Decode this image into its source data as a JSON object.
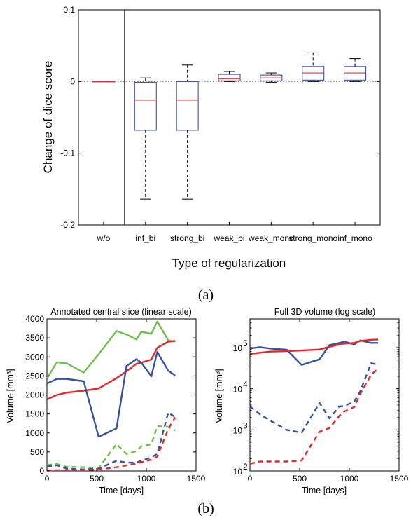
{
  "chart_data": [
    {
      "type": "box",
      "ylabel": "Change of dice score",
      "xlabel": "Type of regularization",
      "ylim": [
        -0.2,
        0.1
      ],
      "yticks": [
        -0.2,
        -0.1,
        0,
        0.1
      ],
      "ytick_labels": [
        "-0.2",
        "-0.1",
        "0",
        "0.1"
      ],
      "reference_line": 0,
      "separator_after_category": 0,
      "categories": [
        "w/o",
        "inf_bi",
        "strong_bi",
        "weak_bi",
        "weak_mono",
        "strong_mono",
        "inf_mono"
      ],
      "boxes": [
        {
          "min": 0,
          "q1": 0,
          "median": 0,
          "q3": 0,
          "max": 0
        },
        {
          "min": -0.164,
          "q1": -0.068,
          "median": -0.026,
          "q3": -0.001,
          "max": 0.005
        },
        {
          "min": -0.164,
          "q1": -0.068,
          "median": -0.026,
          "q3": 0.0,
          "max": 0.023
        },
        {
          "min": 0.0,
          "q1": 0.001,
          "median": 0.004,
          "q3": 0.01,
          "max": 0.014
        },
        {
          "min": -0.001,
          "q1": 0.001,
          "median": 0.005,
          "q3": 0.009,
          "max": 0.012
        },
        {
          "min": 0.0,
          "q1": 0.002,
          "median": 0.012,
          "q3": 0.021,
          "max": 0.04
        },
        {
          "min": 0.0,
          "q1": 0.002,
          "median": 0.012,
          "q3": 0.021,
          "max": 0.032
        }
      ],
      "colors": {
        "box": "#2b3fa6",
        "median": "#e8303a",
        "reference": "#777777"
      },
      "sublabel": "(a)"
    },
    {
      "type": "line",
      "title": "Annotated central slice (linear scale)",
      "xlabel": "Time [days]",
      "ylabel": "Volume [mm³]",
      "xlim": [
        0,
        1500
      ],
      "ylim": [
        0,
        4000
      ],
      "xticks": [
        0,
        500,
        1000,
        1500
      ],
      "yticks": [
        0,
        500,
        1000,
        1500,
        2000,
        2500,
        3000,
        3500,
        4000
      ],
      "series": [
        {
          "color": "#6cc04a",
          "style": "solid",
          "x": [
            0,
            100,
            200,
            370,
            520,
            700,
            800,
            900,
            950,
            1050,
            1110,
            1220,
            1290
          ],
          "y": [
            2430,
            2860,
            2830,
            2590,
            3070,
            3680,
            3590,
            3460,
            3660,
            3610,
            3930,
            3440,
            3400
          ]
        },
        {
          "color": "#e8262a",
          "style": "solid",
          "x": [
            0,
            100,
            200,
            370,
            520,
            700,
            800,
            900,
            950,
            1050,
            1110,
            1220,
            1290
          ],
          "y": [
            1880,
            2000,
            2060,
            2110,
            2170,
            2440,
            2620,
            2820,
            2850,
            2930,
            3240,
            3400,
            3420
          ]
        },
        {
          "color": "#3452a4",
          "style": "solid",
          "x": [
            0,
            100,
            200,
            370,
            520,
            700,
            800,
            900,
            950,
            1050,
            1110,
            1220,
            1290
          ],
          "y": [
            2300,
            2420,
            2420,
            2360,
            900,
            1120,
            2760,
            2940,
            2850,
            2490,
            3130,
            2640,
            2510
          ]
        },
        {
          "color": "#6cc04a",
          "style": "dashed",
          "x": [
            0,
            100,
            200,
            370,
            520,
            700,
            800,
            900,
            950,
            1050,
            1110,
            1220,
            1290
          ],
          "y": [
            160,
            180,
            110,
            100,
            80,
            710,
            450,
            520,
            650,
            700,
            1180,
            1160,
            1060
          ]
        },
        {
          "color": "#3452a4",
          "style": "dashed",
          "x": [
            0,
            100,
            200,
            370,
            520,
            700,
            800,
            900,
            950,
            1050,
            1110,
            1220,
            1290
          ],
          "y": [
            120,
            150,
            60,
            40,
            60,
            270,
            220,
            220,
            270,
            360,
            450,
            1530,
            1420
          ]
        },
        {
          "color": "#e8262a",
          "style": "dashed",
          "x": [
            0,
            100,
            200,
            370,
            520,
            700,
            800,
            900,
            950,
            1050,
            1110,
            1220,
            1290
          ],
          "y": [
            10,
            20,
            20,
            20,
            40,
            100,
            150,
            190,
            230,
            300,
            380,
            1100,
            1410
          ]
        }
      ]
    },
    {
      "type": "line",
      "title": "Full 3D volume (log scale)",
      "xlabel": "Time [days]",
      "ylabel": "Volume [mm³]",
      "xlim": [
        0,
        1500
      ],
      "ylim": [
        100,
        500000
      ],
      "yscale": "log",
      "xticks": [
        0,
        500,
        1000,
        1500
      ],
      "yticks": [
        100,
        1000,
        10000,
        100000
      ],
      "ytick_labels": [
        "10",
        "10",
        "10",
        "10"
      ],
      "ytick_exponents": [
        "2",
        "3",
        "4",
        "5"
      ],
      "series": [
        {
          "color": "#3452a4",
          "style": "solid",
          "x": [
            0,
            100,
            200,
            370,
            520,
            700,
            800,
            900,
            950,
            1050,
            1110,
            1220,
            1290
          ],
          "y": [
            95000,
            103000,
            95000,
            89000,
            38000,
            52000,
            115000,
            130000,
            140000,
            120000,
            150000,
            130000,
            130000
          ]
        },
        {
          "color": "#e8262a",
          "style": "solid",
          "x": [
            0,
            100,
            200,
            370,
            520,
            700,
            800,
            900,
            950,
            1050,
            1110,
            1220,
            1290
          ],
          "y": [
            70000,
            75000,
            80000,
            82000,
            85000,
            90000,
            105000,
            120000,
            125000,
            130000,
            145000,
            155000,
            158000
          ]
        },
        {
          "color": "#3452a4",
          "style": "dashed",
          "x": [
            0,
            100,
            200,
            370,
            520,
            700,
            800,
            900,
            950,
            1050,
            1110,
            1220,
            1290
          ],
          "y": [
            3700,
            2400,
            1700,
            1000,
            850,
            4500,
            1900,
            3700,
            3800,
            4900,
            8700,
            42000,
            38000
          ]
        },
        {
          "color": "#e8262a",
          "style": "dashed",
          "x": [
            0,
            100,
            200,
            370,
            520,
            700,
            800,
            900,
            950,
            1050,
            1110,
            1220,
            1290
          ],
          "y": [
            150,
            170,
            170,
            170,
            180,
            900,
            1100,
            2200,
            2800,
            3600,
            7500,
            22000,
            31000
          ]
        }
      ]
    }
  ],
  "captions": {
    "b": "(b)"
  }
}
